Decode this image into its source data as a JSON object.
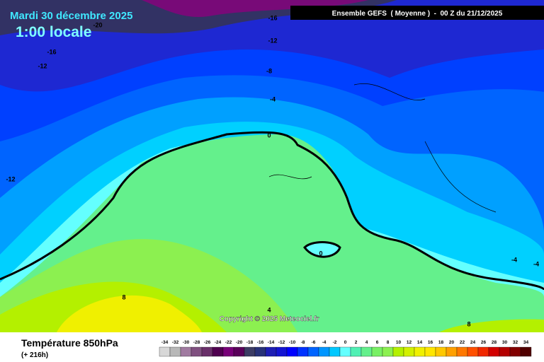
{
  "header": {
    "title": "Mardi 30 décembre 2025",
    "time": "1:00 locale",
    "run": "Ensemble GEFS  ( Moyenne )  -  00 Z du 21/12/2025"
  },
  "map": {
    "copyright": "Copyright © 2025 Meteociel.fr",
    "contour_labels": [
      -20,
      -16,
      -12,
      -16,
      -12,
      -8,
      -4,
      0,
      -12,
      0,
      4,
      8,
      -4,
      -4,
      8
    ]
  },
  "footer": {
    "variable": "Température 850hPa",
    "lead": "(+ 216h)"
  },
  "legend": {
    "values": [
      -34,
      -32,
      -30,
      -28,
      -26,
      -24,
      -22,
      -20,
      -18,
      -16,
      -14,
      -12,
      -10,
      -8,
      -6,
      -4,
      -2,
      0,
      2,
      4,
      6,
      8,
      10,
      12,
      14,
      16,
      18,
      20,
      22,
      24,
      26,
      28,
      30,
      32,
      34
    ],
    "colors": [
      "#d8d8d8",
      "#b8b8b8",
      "#a07aa0",
      "#805080",
      "#6a306a",
      "#500050",
      "#780078",
      "#5a005a",
      "#3c3c64",
      "#283278",
      "#1e1eb4",
      "#1414d2",
      "#0000ff",
      "#0032ff",
      "#0064ff",
      "#0096ff",
      "#00c8ff",
      "#64ffff",
      "#50f0b4",
      "#64f08c",
      "#78f064",
      "#8cf050",
      "#b4f000",
      "#d2f000",
      "#f0f000",
      "#ffe600",
      "#ffc800",
      "#ffa000",
      "#ff7800",
      "#ff5000",
      "#f02800",
      "#d20000",
      "#b40000",
      "#820000",
      "#500000"
    ]
  }
}
